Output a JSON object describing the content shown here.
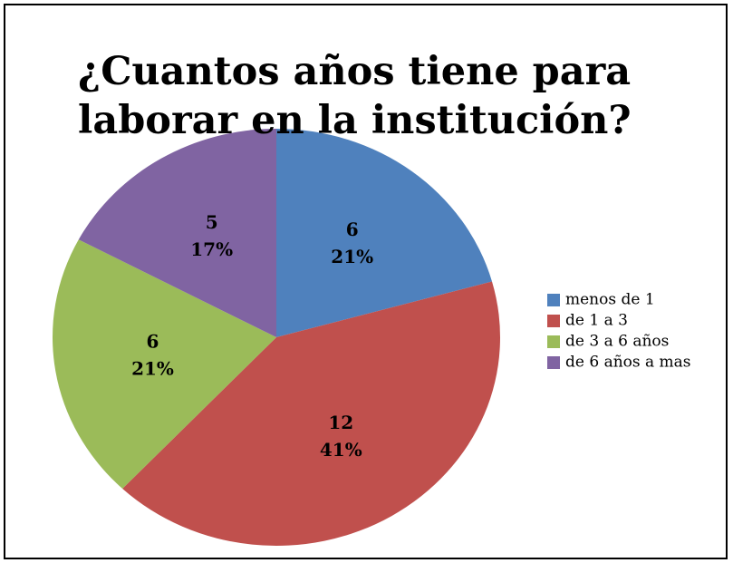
{
  "chart_data": {
    "type": "pie",
    "title": "¿Cuantos años tiene para laborar en la institución?",
    "categories": [
      "menos de  1",
      "de 1 a 3",
      "de 3 a 6 años",
      "de 6 años a mas"
    ],
    "values": [
      6,
      12,
      6,
      5
    ],
    "percent_labels": [
      "21%",
      "41%",
      "21%",
      "17%"
    ],
    "colors": [
      "#4f81bd",
      "#c0504d",
      "#9bbb59",
      "#8064a2"
    ],
    "legend": "right"
  }
}
